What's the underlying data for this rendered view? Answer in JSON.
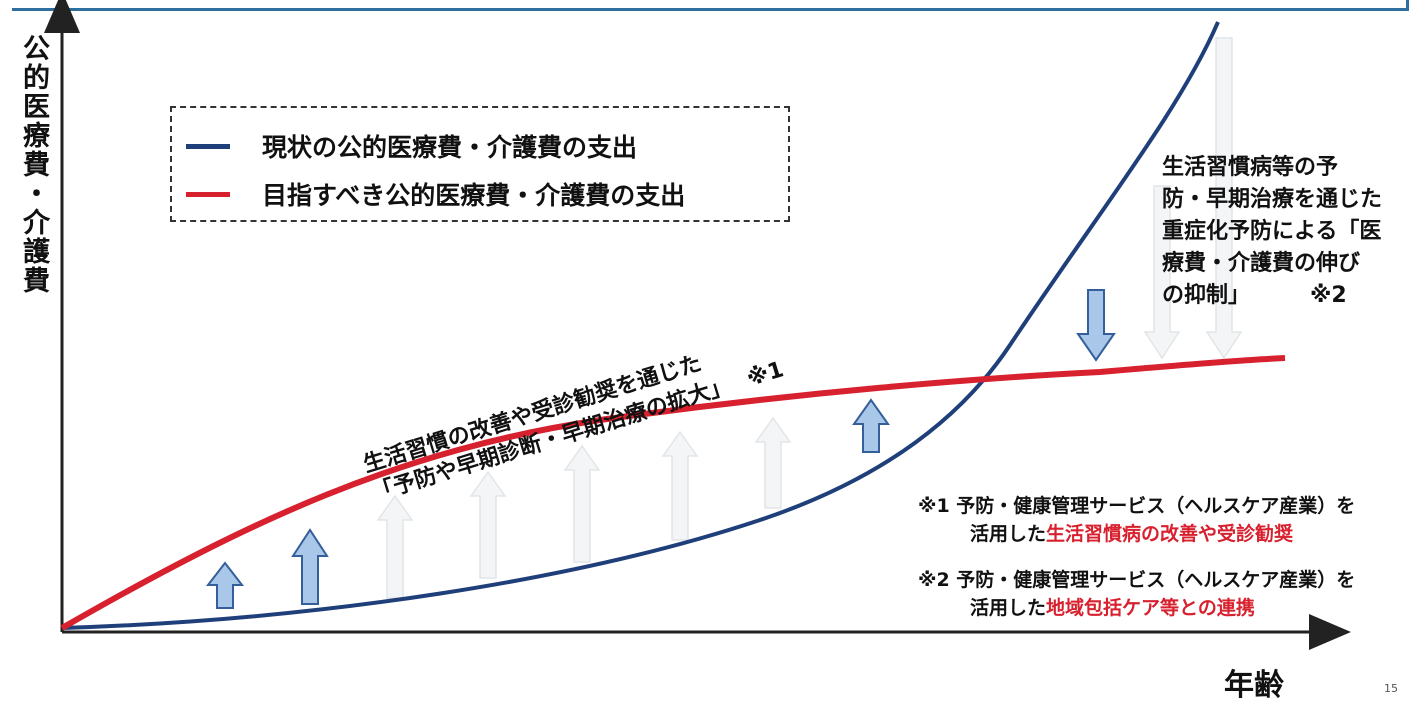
{
  "axes": {
    "y_label": "公的医療費・介護費",
    "x_label": "年齢"
  },
  "legend": {
    "items": [
      {
        "label": "現状の公的医療費・介護費の支出",
        "color": "#1f3f7a"
      },
      {
        "label": "目指すべき公的医療費・介護費の支出",
        "color": "#d8212e"
      }
    ]
  },
  "annotations": {
    "curve_label_line1": "生活習慣の改善や受診勧奨を通じた",
    "curve_label_line2": "「予防や早期診断・早期治療の拡大」",
    "curve_label_ref": "※1",
    "right_label_line1": "生活習慣病等の予",
    "right_label_line2": "防・早期治療を通じた",
    "right_label_line3": "重症化予防による「医",
    "right_label_line4": "療費・介護費の伸び",
    "right_label_line5": "の抑制」",
    "right_label_ref": "※2"
  },
  "notes": [
    {
      "line1": "※1 予防・健康管理サービス（ヘルスケア産業）を",
      "prefix": "活用した",
      "highlight": "生活習慣病の改善や受診勧奨"
    },
    {
      "line1": "※2 予防・健康管理サービス（ヘルスケア産業）を",
      "prefix": "活用した",
      "highlight": "地域包括ケア等との連携"
    }
  ],
  "page_number": "15",
  "colors": {
    "current_curve": "#1f3f7a",
    "target_curve": "#d8212e",
    "arrow_fill": "#a9c7e8",
    "arrow_stroke": "#355f9a",
    "axis": "#222222",
    "frame": "#2e6fa0"
  }
}
